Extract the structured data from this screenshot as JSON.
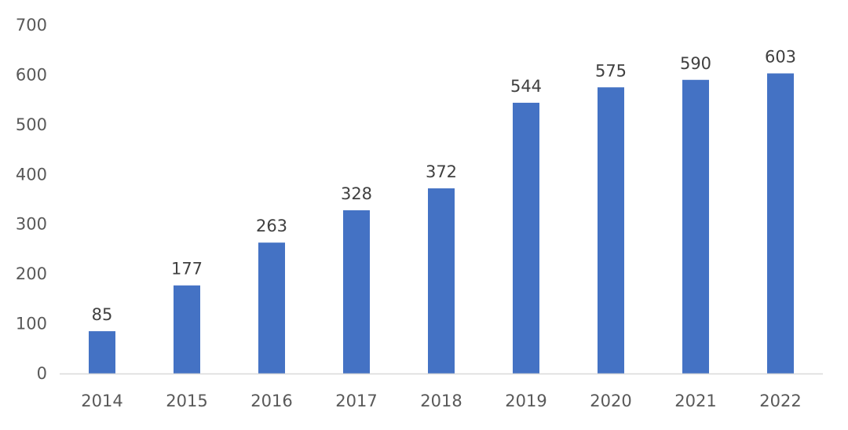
{
  "chart_data": {
    "type": "bar",
    "categories": [
      "2014",
      "2015",
      "2016",
      "2017",
      "2018",
      "2019",
      "2020",
      "2021",
      "2022"
    ],
    "values": [
      85,
      177,
      263,
      328,
      372,
      544,
      575,
      590,
      603
    ],
    "data_labels": [
      "85",
      "177",
      "263",
      "328",
      "372",
      "544",
      "575",
      "590",
      "603"
    ],
    "yticks": [
      "0",
      "100",
      "200",
      "300",
      "400",
      "500",
      "600",
      "700"
    ],
    "ylim": [
      0,
      700
    ],
    "grid": false,
    "bar_color": "#4472C4",
    "axis_color": "#D9D9D9",
    "title": "",
    "xlabel": "",
    "ylabel": ""
  }
}
